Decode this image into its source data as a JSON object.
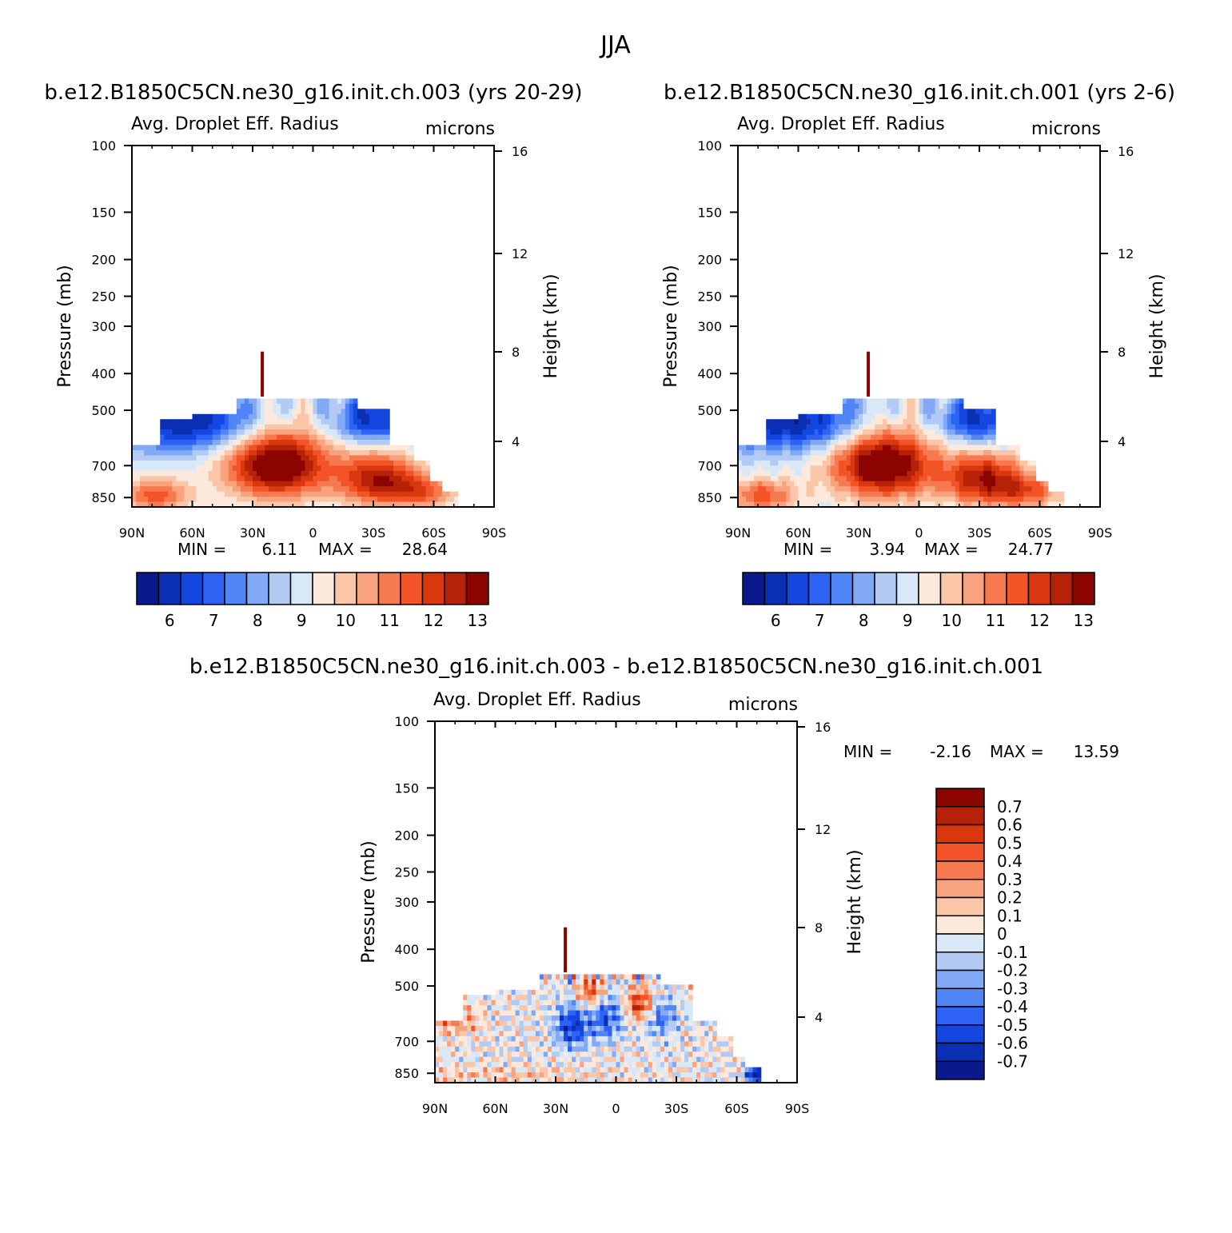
{
  "figure": {
    "title": "JJA"
  },
  "colors": {
    "abs_palette": [
      "#0a1a8c",
      "#0a2fb4",
      "#1446e0",
      "#2e62f5",
      "#4f85f7",
      "#82a9f5",
      "#b3cbf4",
      "#d9e8f7",
      "#fde9dc",
      "#fbc6a8",
      "#f9a27e",
      "#f7794f",
      "#f25428",
      "#d9380f",
      "#b62208",
      "#8c0400"
    ],
    "diff_palette": [
      "#0a1a8c",
      "#0a2fb4",
      "#1446e0",
      "#2e62f5",
      "#4f85f7",
      "#82a9f5",
      "#b3cbf4",
      "#d9e8f7",
      "#fde9dc",
      "#fbc6a8",
      "#f9a27e",
      "#f7794f",
      "#f25428",
      "#d9380f",
      "#b62208",
      "#8c0400"
    ]
  },
  "panels": [
    {
      "case_title": "b.e12.B1850C5CN.ne30_g16.init.ch.003 (yrs 20-29)",
      "var_title": "Avg. Droplet Eff. Radius",
      "units": "microns",
      "ylabel": "Pressure (mb)",
      "ylabel_right": "Height (km)",
      "min_label": "MIN =",
      "min_value": "6.11",
      "max_label": "MAX =",
      "max_value": "28.64",
      "colorbar_labels": [
        "6",
        "7",
        "8",
        "9",
        "10",
        "11",
        "12",
        "13"
      ]
    },
    {
      "case_title": "b.e12.B1850C5CN.ne30_g16.init.ch.001 (yrs 2-6)",
      "var_title": "Avg. Droplet Eff. Radius",
      "units": "microns",
      "ylabel": "Pressure (mb)",
      "ylabel_right": "Height (km)",
      "min_label": "MIN =",
      "min_value": "3.94",
      "max_label": "MAX =",
      "max_value": "24.77",
      "colorbar_labels": [
        "6",
        "7",
        "8",
        "9",
        "10",
        "11",
        "12",
        "13"
      ]
    },
    {
      "case_title": "b.e12.B1850C5CN.ne30_g16.init.ch.003 - b.e12.B1850C5CN.ne30_g16.init.ch.001",
      "var_title": "Avg. Droplet Eff. Radius",
      "units": "microns",
      "ylabel": "Pressure (mb)",
      "ylabel_right": "Height (km)",
      "min_label": "MIN =",
      "min_value": "-2.16",
      "max_label": "MAX =",
      "max_value": "13.59",
      "colorbar_labels": [
        "0.7",
        "0.6",
        "0.5",
        "0.4",
        "0.3",
        "0.2",
        "0.1",
        "0",
        "-0.1",
        "-0.2",
        "-0.3",
        "-0.4",
        "-0.5",
        "-0.6",
        "-0.7"
      ]
    }
  ],
  "chart_data": [
    {
      "type": "heatmap",
      "title": "Avg. Droplet Eff. Radius",
      "units": "microns",
      "x_ticks": [
        "90N",
        "60N",
        "30N",
        "0",
        "30S",
        "60S",
        "90S"
      ],
      "y_ticks": [
        "100",
        "150",
        "200",
        "250",
        "300",
        "400",
        "500",
        "700",
        "850"
      ],
      "y2_ticks": [
        "16",
        "12",
        "8",
        "4"
      ],
      "xlabel": "",
      "ylabel": "Pressure (mb)",
      "y2label": "Height (km)",
      "ylog": true,
      "contour_levels": [
        5.5,
        6,
        6.5,
        7,
        7.5,
        8,
        8.5,
        9,
        9.5,
        10,
        10.5,
        11,
        11.5,
        12,
        12.5,
        13,
        13.5
      ],
      "min": 6.11,
      "max": 28.64
    },
    {
      "type": "heatmap",
      "title": "Avg. Droplet Eff. Radius",
      "units": "microns",
      "x_ticks": [
        "90N",
        "60N",
        "30N",
        "0",
        "30S",
        "60S",
        "90S"
      ],
      "y_ticks": [
        "100",
        "150",
        "200",
        "250",
        "300",
        "400",
        "500",
        "700",
        "850"
      ],
      "y2_ticks": [
        "16",
        "12",
        "8",
        "4"
      ],
      "xlabel": "",
      "ylabel": "Pressure (mb)",
      "y2label": "Height (km)",
      "ylog": true,
      "contour_levels": [
        5.5,
        6,
        6.5,
        7,
        7.5,
        8,
        8.5,
        9,
        9.5,
        10,
        10.5,
        11,
        11.5,
        12,
        12.5,
        13,
        13.5
      ],
      "min": 3.94,
      "max": 24.77
    },
    {
      "type": "heatmap",
      "title": "Avg. Droplet Eff. Radius",
      "units": "microns",
      "x_ticks": [
        "90N",
        "60N",
        "30N",
        "0",
        "30S",
        "60S",
        "90S"
      ],
      "y_ticks": [
        "100",
        "150",
        "200",
        "250",
        "300",
        "400",
        "500",
        "700",
        "850"
      ],
      "y2_ticks": [
        "16",
        "12",
        "8",
        "4"
      ],
      "xlabel": "",
      "ylabel": "Pressure (mb)",
      "y2label": "Height (km)",
      "ylog": true,
      "contour_levels": [
        -0.8,
        -0.7,
        -0.6,
        -0.5,
        -0.4,
        -0.3,
        -0.2,
        -0.1,
        0,
        0.1,
        0.2,
        0.3,
        0.4,
        0.5,
        0.6,
        0.7,
        0.8
      ],
      "min": -2.16,
      "max": 13.59
    }
  ]
}
